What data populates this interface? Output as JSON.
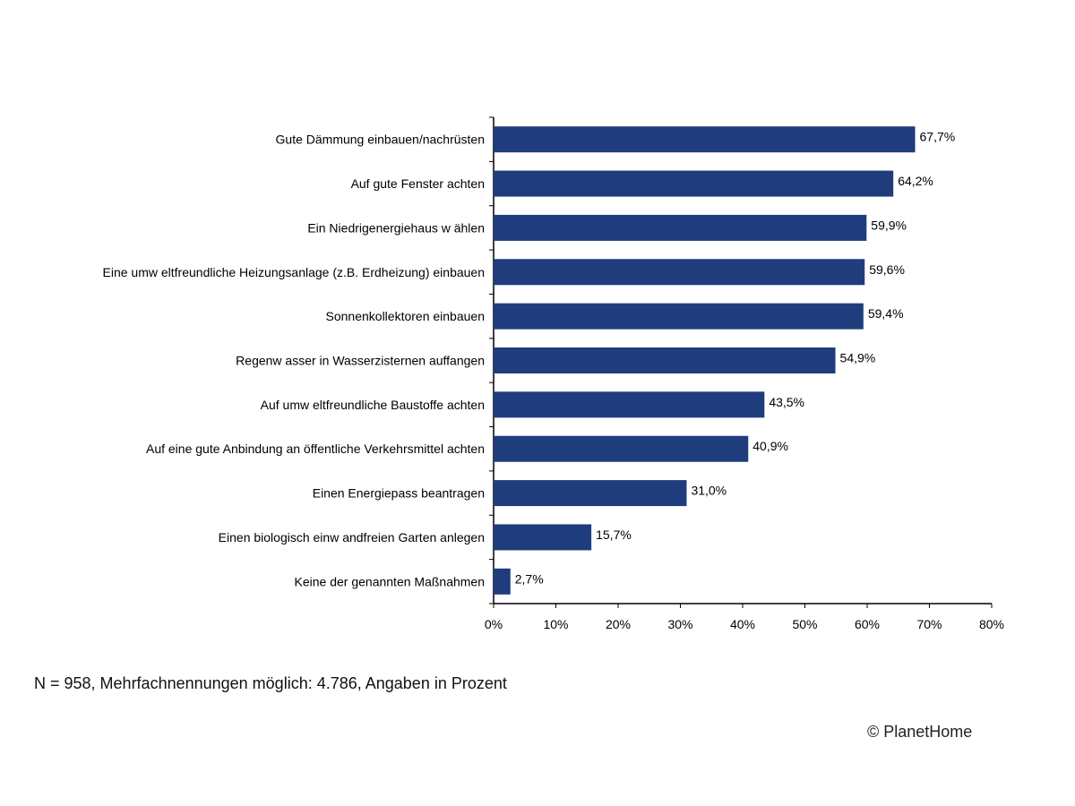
{
  "chart_data": {
    "type": "bar",
    "orientation": "horizontal",
    "categories": [
      "Gute Dämmung einbauen/nachrüsten",
      "Auf gute Fenster achten",
      "Ein Niedrigenergiehaus w ählen",
      "Eine umw eltfreundliche Heizungsanlage (z.B. Erdheizung) einbauen",
      "Sonnenkollektoren einbauen",
      "Regenw asser in Wasserzisternen auffangen",
      "Auf umw eltfreundliche Baustoffe achten",
      "Auf eine gute Anbindung an öffentliche Verkehrsmittel achten",
      "Einen Energiepass beantragen",
      "Einen biologisch einw andfreien Garten anlegen",
      "Keine der genannten Maßnahmen"
    ],
    "values": [
      67.7,
      64.2,
      59.9,
      59.6,
      59.4,
      54.9,
      43.5,
      40.9,
      31.0,
      15.7,
      2.7
    ],
    "data_labels": [
      "67,7%",
      "64,2%",
      "59,9%",
      "59,6%",
      "59,4%",
      "54,9%",
      "43,5%",
      "40,9%",
      "31,0%",
      "15,7%",
      "2,7%"
    ],
    "xlim": [
      0,
      80
    ],
    "xticks": [
      "0%",
      "10%",
      "20%",
      "30%",
      "40%",
      "50%",
      "60%",
      "70%",
      "80%"
    ],
    "grid": false,
    "bar_color": "#1f3c7c"
  },
  "footnote": "N = 958, Mehrfachnennungen möglich: 4.786, Angaben in Prozent",
  "copyright": "© PlanetHome"
}
